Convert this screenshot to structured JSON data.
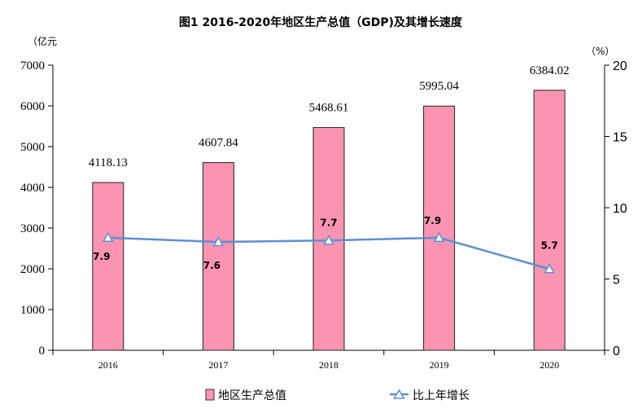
{
  "chart_data": {
    "type": "bar+line",
    "title": "图1 2016-2020年地区生产总值（GDP)及其增长速度",
    "categories": [
      "2016",
      "2017",
      "2018",
      "2019",
      "2020"
    ],
    "left_axis": {
      "unit": "（亿元",
      "ylim": [
        0,
        7000
      ],
      "ticks": [
        "0",
        "1000",
        "2000",
        "3000",
        "4000",
        "5000",
        "6000",
        "7000"
      ]
    },
    "right_axis": {
      "unit": "（%）",
      "ylim": [
        0,
        20
      ],
      "ticks": [
        "0",
        "5",
        "10",
        "15",
        "20"
      ]
    },
    "series": [
      {
        "name": "地区生产总值",
        "type": "bar",
        "axis": "left",
        "color": "#fb94b2",
        "values": [
          4118.13,
          4607.84,
          5468.61,
          5995.04,
          6384.02
        ],
        "labels": [
          "4118.13",
          "4607.84",
          "5468.61",
          "5995.04",
          "6384.02"
        ]
      },
      {
        "name": "比上年增长",
        "type": "line",
        "axis": "right",
        "color": "#5b8fd6",
        "values": [
          7.9,
          7.6,
          7.7,
          7.9,
          5.7
        ],
        "labels": [
          "7.9",
          "7.6",
          "7.7",
          "7.9",
          "5.7"
        ]
      }
    ],
    "legend": {
      "placement": "bottom"
    },
    "grid": false
  }
}
